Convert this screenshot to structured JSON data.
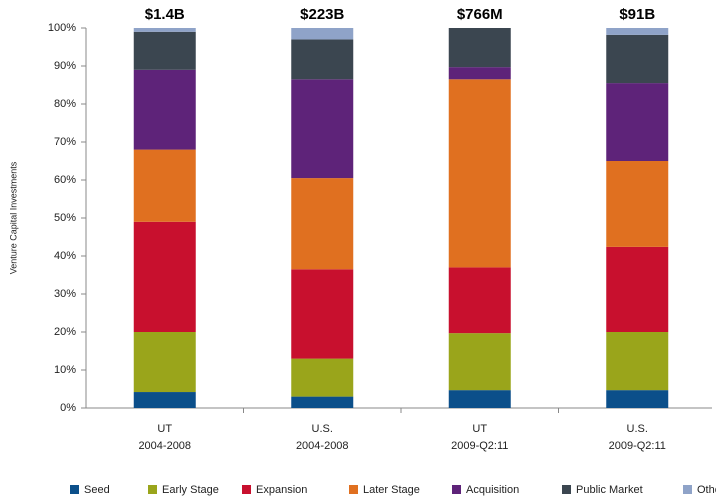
{
  "chart_data": {
    "type": "stacked_bar",
    "y_label": "Venture Capital Investments",
    "categories": [
      [
        "UT",
        "2004-2008"
      ],
      [
        "U.S.",
        "2004-2008"
      ],
      [
        "UT",
        "2009-Q2:11"
      ],
      [
        "U.S.",
        "2009-Q2:11"
      ]
    ],
    "annotations": [
      "$1.4B",
      "$223B",
      "$766M",
      "$91B"
    ],
    "series": [
      {
        "name": "Seed",
        "color": "#0b4f8a",
        "values": [
          4.2,
          3,
          4.7,
          4.7
        ]
      },
      {
        "name": "Early Stage",
        "color": "#9aa51b",
        "values": [
          15.8,
          10,
          15,
          15.3
        ]
      },
      {
        "name": "Expansion",
        "color": "#c8102e",
        "values": [
          29,
          23.5,
          17.3,
          22.4
        ]
      },
      {
        "name": "Later Stage",
        "color": "#e07020",
        "values": [
          19,
          24,
          49.5,
          22.6
        ]
      },
      {
        "name": "Acquisition",
        "color": "#5e2379",
        "values": [
          21,
          26,
          3.2,
          20.5
        ]
      },
      {
        "name": "Public Market",
        "color": "#3b4650",
        "values": [
          10,
          10.5,
          10.3,
          12.7
        ]
      },
      {
        "name": "Other",
        "color": "#8fa3c8",
        "values": [
          1,
          3,
          0,
          1.8
        ]
      }
    ],
    "ylim": [
      0,
      100
    ],
    "yticks": [
      {
        "value": 0,
        "label": "0%"
      },
      {
        "value": 10,
        "label": "10%"
      },
      {
        "value": 20,
        "label": "20%"
      },
      {
        "value": 30,
        "label": "30%"
      },
      {
        "value": 40,
        "label": "40%"
      },
      {
        "value": 50,
        "label": "50%"
      },
      {
        "value": 60,
        "label": "60%"
      },
      {
        "value": 70,
        "label": "70%"
      },
      {
        "value": 80,
        "label": "80%"
      },
      {
        "value": 90,
        "label": "90%"
      },
      {
        "value": 100,
        "label": "100%"
      }
    ],
    "legend": "bottom"
  }
}
